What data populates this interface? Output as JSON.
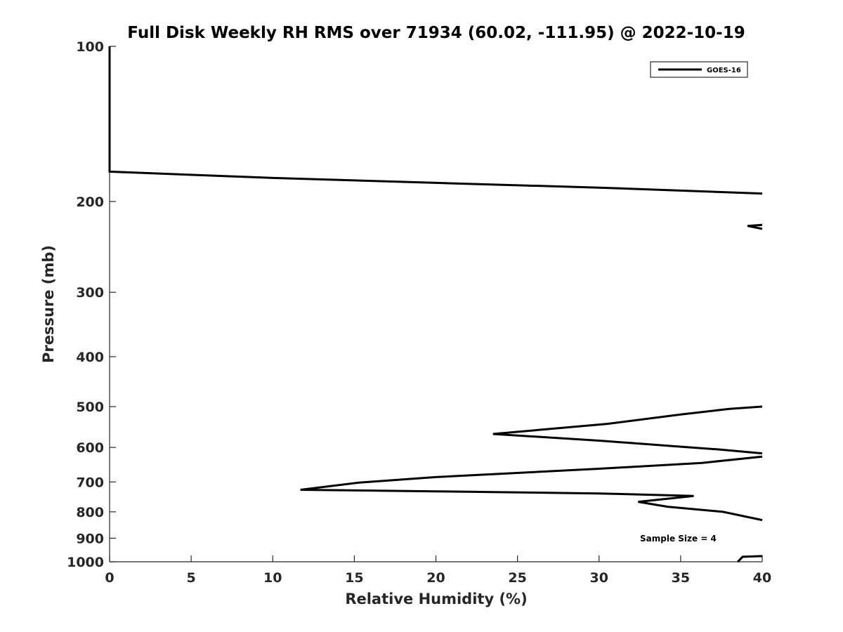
{
  "chart_data": {
    "type": "line",
    "title": "Full Disk Weekly RH RMS over 71934 (60.02, -111.95) @ 2022-10-19",
    "xlabel": "Relative Humidity (%)",
    "ylabel": "Pressure (mb)",
    "xlim": [
      0,
      40
    ],
    "ylim": [
      100,
      1000
    ],
    "y_scale": "log",
    "y_reversed": true,
    "x_ticks": [
      "0",
      "5",
      "10",
      "15",
      "20",
      "25",
      "30",
      "35",
      "40"
    ],
    "y_ticks": [
      "100",
      "200",
      "300",
      "400",
      "500",
      "600",
      "700",
      "800",
      "900",
      "1000"
    ],
    "grid": false,
    "legend_position": "top-right",
    "annotation": "Sample Size = 4",
    "series": [
      {
        "name": "GOES-16",
        "color": "#000000",
        "segments": [
          [
            [
              0,
              100
            ],
            [
              0,
              125
            ],
            [
              0,
              150
            ],
            [
              0,
              170
            ],
            [
              0,
              175
            ],
            [
              10,
              180
            ],
            [
              20,
              184
            ],
            [
              30,
              188
            ],
            [
              40,
              193
            ]
          ],
          [
            [
              40,
              222
            ],
            [
              39.1,
              223
            ],
            [
              40,
              226
            ]
          ],
          [
            [
              40,
              500
            ],
            [
              38,
              505
            ],
            [
              35,
              518
            ],
            [
              30.5,
              540
            ],
            [
              23.5,
              565
            ],
            [
              30,
              582
            ],
            [
              35,
              598
            ],
            [
              37.2,
              605
            ],
            [
              40,
              616
            ]
          ],
          [
            [
              40,
              625
            ],
            [
              36.3,
              643
            ],
            [
              30,
              660
            ],
            [
              20,
              685
            ],
            [
              15.3,
              702
            ],
            [
              11.7,
              725
            ],
            [
              20,
              730
            ],
            [
              30,
              737
            ],
            [
              35.8,
              745
            ],
            [
              32.4,
              765
            ],
            [
              34.2,
              782
            ],
            [
              37.6,
              800
            ],
            [
              40,
              830
            ]
          ],
          [
            [
              40,
              975
            ],
            [
              38.8,
              978
            ],
            [
              38.5,
              1000
            ]
          ]
        ]
      }
    ]
  }
}
